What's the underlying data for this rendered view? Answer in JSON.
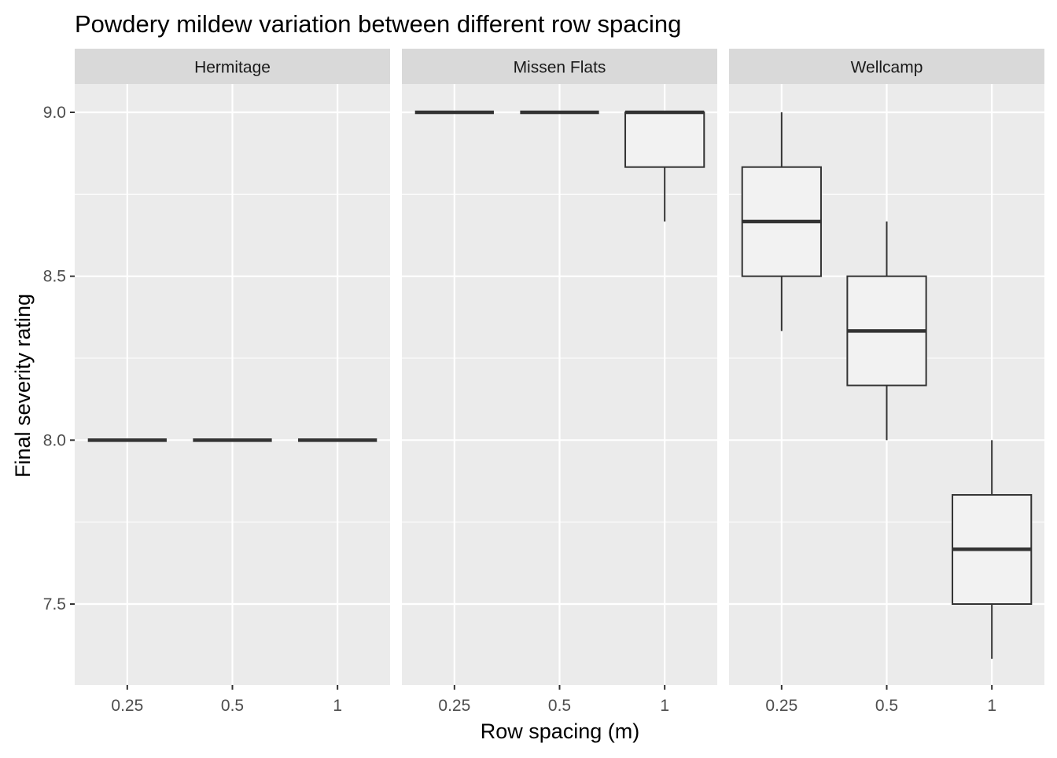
{
  "chart_data": {
    "type": "boxplot",
    "title": "Powdery mildew variation between different row spacing",
    "xlabel": "Row spacing (m)",
    "ylabel": "Final severity rating",
    "ylim": [
      7.25,
      9.1
    ],
    "y_ticks": [
      "7.5",
      "8.0",
      "8.5",
      "9.0"
    ],
    "categories": [
      "0.25",
      "0.5",
      "1"
    ],
    "grid": true,
    "colors": {
      "panel_bg": "#ebebeb",
      "strip_bg": "#d9d9d9",
      "box_fill": "#f2f2f2",
      "line": "#333333",
      "grid": "#ffffff",
      "tick_text": "#4d4d4d"
    },
    "facets": [
      {
        "name": "Hermitage",
        "boxes": [
          {
            "x": "0.25",
            "min": 8.0,
            "q1": 8.0,
            "median": 8.0,
            "q3": 8.0,
            "max": 8.0
          },
          {
            "x": "0.5",
            "min": 8.0,
            "q1": 8.0,
            "median": 8.0,
            "q3": 8.0,
            "max": 8.0
          },
          {
            "x": "1",
            "min": 8.0,
            "q1": 8.0,
            "median": 8.0,
            "q3": 8.0,
            "max": 8.0
          }
        ]
      },
      {
        "name": "Missen Flats",
        "boxes": [
          {
            "x": "0.25",
            "min": 9.0,
            "q1": 9.0,
            "median": 9.0,
            "q3": 9.0,
            "max": 9.0
          },
          {
            "x": "0.5",
            "min": 9.0,
            "q1": 9.0,
            "median": 9.0,
            "q3": 9.0,
            "max": 9.0
          },
          {
            "x": "1",
            "min": 8.667,
            "q1": 8.833,
            "median": 9.0,
            "q3": 9.0,
            "max": 9.0
          }
        ]
      },
      {
        "name": "Wellcamp",
        "boxes": [
          {
            "x": "0.25",
            "min": 8.333,
            "q1": 8.5,
            "median": 8.667,
            "q3": 8.833,
            "max": 9.0
          },
          {
            "x": "0.5",
            "min": 8.0,
            "q1": 8.167,
            "median": 8.333,
            "q3": 8.5,
            "max": 8.667
          },
          {
            "x": "1",
            "min": 7.333,
            "q1": 7.5,
            "median": 7.667,
            "q3": 7.833,
            "max": 8.0
          }
        ]
      }
    ]
  }
}
